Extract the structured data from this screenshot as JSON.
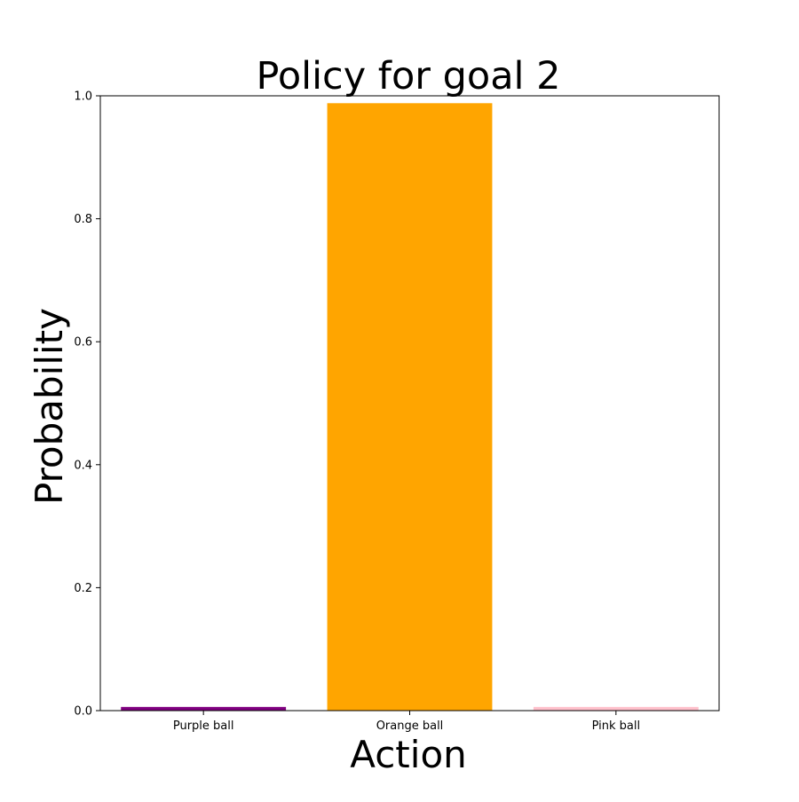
{
  "chart_data": {
    "type": "bar",
    "title": "Policy for goal 2",
    "xlabel": "Action",
    "ylabel": "Probability",
    "categories": [
      "Purple ball",
      "Orange ball",
      "Pink ball"
    ],
    "values": [
      0.006,
      0.988,
      0.006
    ],
    "colors": [
      "#800080",
      "#ffa500",
      "#ffc0cb"
    ],
    "ylim": [
      0,
      1.0
    ],
    "yticks": [
      0.0,
      0.2,
      0.4,
      0.6,
      0.8,
      1.0
    ],
    "ytick_labels": [
      "0.0",
      "0.2",
      "0.4",
      "0.6",
      "0.8",
      "1.0"
    ],
    "grid": false,
    "legend": "none"
  }
}
